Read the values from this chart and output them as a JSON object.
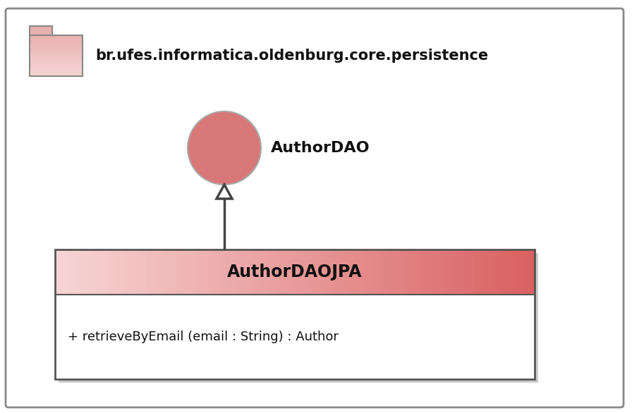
{
  "bg_color": "#ffffff",
  "border_color": "#555555",
  "package_name": "br.ufes.informatica.oldenburg.core.persistence",
  "interface_name": "AuthorDAO",
  "interface_circle_color": "#d97878",
  "interface_circle_edge": "#aaaaaa",
  "class_name": "AuthorDAOJPA",
  "class_method": "+ retrieveByEmail (email : String) : Author",
  "class_header_color_left": "#f7d5d5",
  "class_header_color_right": "#d96060",
  "class_body_color": "#ffffff",
  "class_border_color": "#555555",
  "arrow_color": "#444444",
  "title_fontsize": 15,
  "method_fontsize": 13,
  "package_fontsize": 15,
  "folder_body_color": "#e8b0b0",
  "folder_body_light": "#f5d5d5",
  "folder_border_color": "#888888",
  "outer_border_color": "#888888",
  "shadow_color": "#cccccc"
}
